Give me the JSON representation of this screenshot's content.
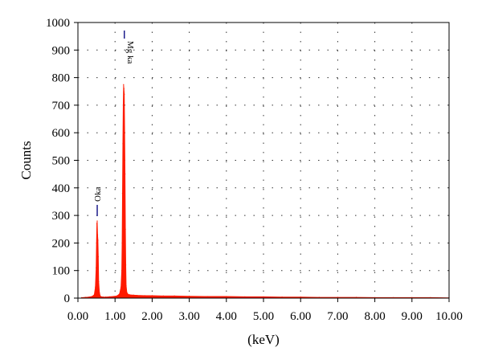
{
  "colors": {
    "spectrum": "#ff1a00",
    "peak_marker": "#1c1c8c",
    "grid": "#333333",
    "axis": "#000000"
  },
  "chart_data": {
    "type": "area",
    "title": "",
    "xlabel": "(keV)",
    "ylabel": "Counts",
    "xlim": [
      0,
      10
    ],
    "ylim": [
      0,
      1000
    ],
    "grid": true,
    "grid_style": "dotted",
    "x_ticks": [
      "0.00",
      "1.00",
      "2.00",
      "3.00",
      "4.00",
      "5.00",
      "6.00",
      "7.00",
      "8.00",
      "9.00",
      "10.00"
    ],
    "y_ticks": [
      "0",
      "100",
      "200",
      "300",
      "400",
      "500",
      "600",
      "700",
      "800",
      "900",
      "1000"
    ],
    "peaks": [
      {
        "label": "Oka",
        "energy": 0.52,
        "counts": 280
      },
      {
        "label": "Mg ka",
        "energy": 1.25,
        "counts": 775
      }
    ],
    "series": [
      {
        "x": [
          0.1,
          0.2,
          0.3,
          0.38,
          0.44,
          0.47,
          0.49,
          0.5,
          0.51,
          0.52,
          0.53,
          0.54,
          0.55,
          0.56,
          0.58,
          0.6,
          0.63,
          0.68,
          0.75,
          0.85,
          0.95,
          1.05,
          1.12,
          1.16,
          1.18,
          1.19,
          1.2,
          1.21,
          1.22,
          1.23,
          1.24,
          1.25,
          1.26,
          1.27,
          1.28,
          1.29,
          1.3,
          1.32,
          1.35,
          1.4,
          1.5,
          1.6,
          1.8,
          2.0,
          2.3,
          2.6,
          3.0,
          3.5,
          4.0,
          4.5,
          5.0,
          5.5,
          6.0,
          6.5,
          7.0,
          7.5,
          8.0,
          8.5,
          9.0,
          9.5,
          10.0
        ],
        "y": [
          2,
          3,
          4,
          6,
          12,
          40,
          110,
          200,
          270,
          280,
          230,
          210,
          150,
          60,
          20,
          8,
          5,
          4,
          4,
          5,
          6,
          8,
          15,
          40,
          100,
          200,
          380,
          560,
          700,
          775,
          760,
          740,
          600,
          450,
          250,
          120,
          45,
          20,
          14,
          12,
          11,
          10,
          9,
          9,
          8,
          8,
          7,
          6,
          6,
          5,
          5,
          4,
          4,
          3,
          3,
          3,
          2,
          2,
          2,
          2,
          1
        ]
      }
    ]
  }
}
